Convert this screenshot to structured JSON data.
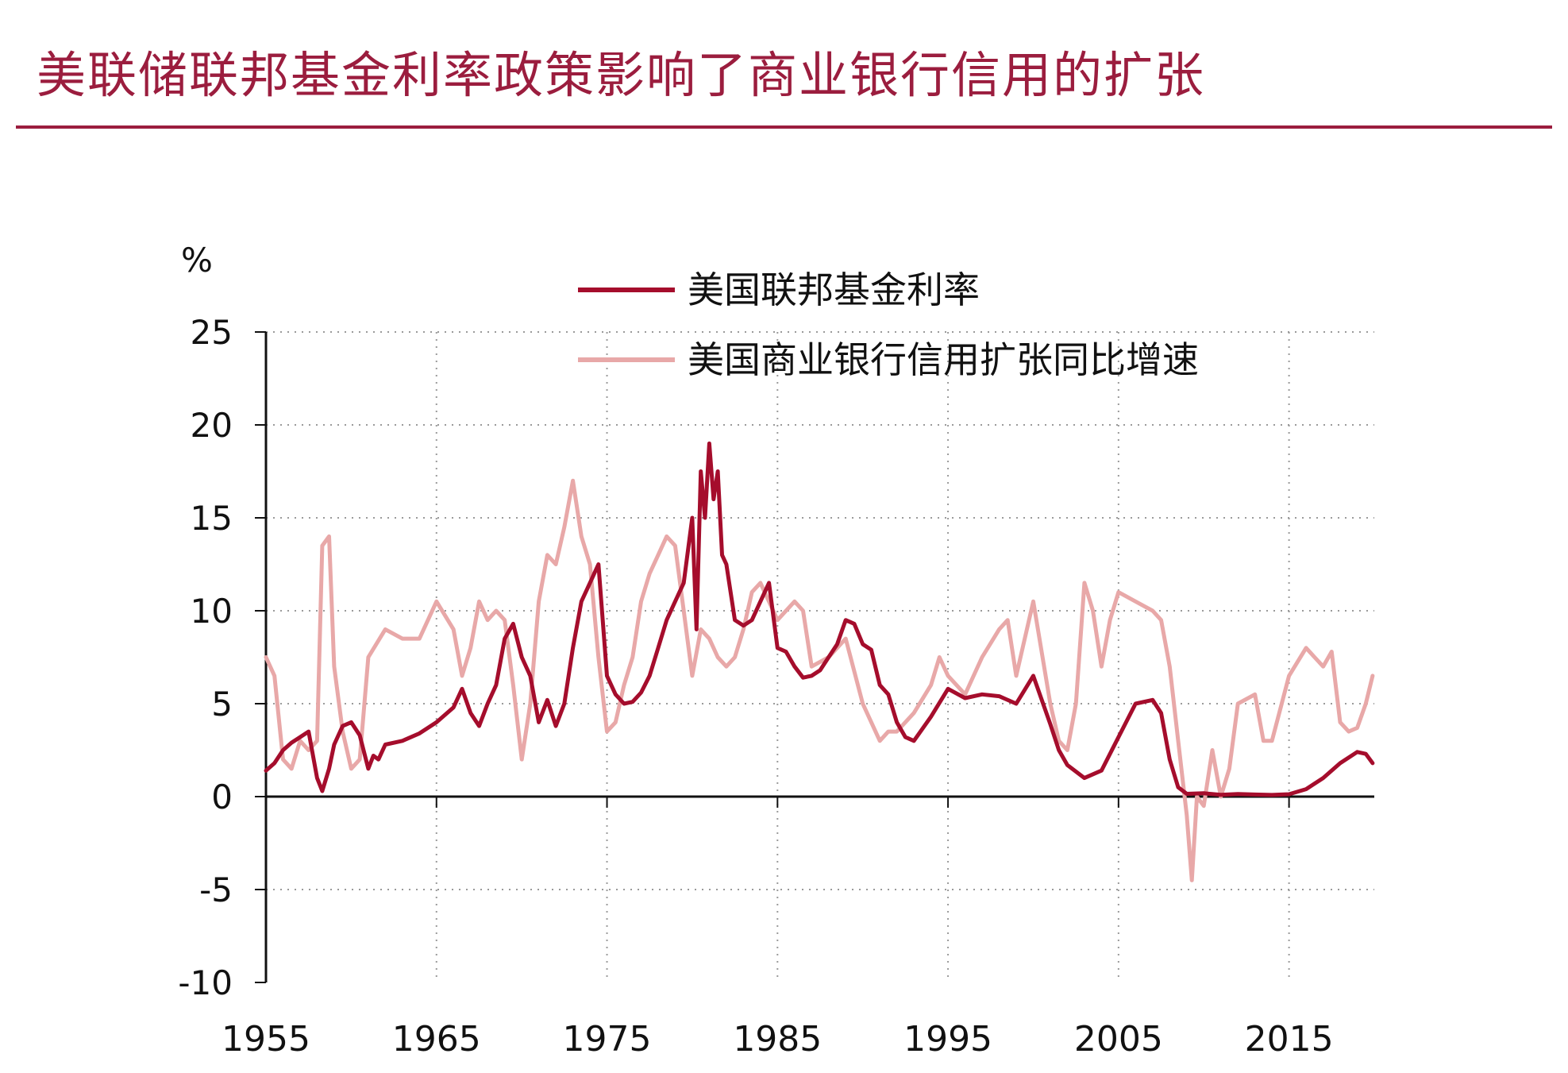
{
  "header": {
    "title": "美联储联邦基金利率政策影响了商业银行信用的扩张"
  },
  "chart_data": {
    "type": "line",
    "title": "美联储联邦基金利率政策影响了商业银行信用的扩张",
    "ylabel": "%",
    "xlabel": "",
    "xlim": [
      1955,
      2020
    ],
    "ylim": [
      -10,
      25
    ],
    "x_ticks": [
      1955,
      1965,
      1975,
      1985,
      1995,
      2005,
      2015
    ],
    "y_ticks": [
      -10,
      -5,
      0,
      5,
      10,
      15,
      20,
      25
    ],
    "grid": true,
    "legend_position": "top-center",
    "series": [
      {
        "name": "美国联邦基金利率",
        "color": "#a50d2c",
        "x": [
          1955,
          1955.5,
          1956,
          1956.5,
          1957,
          1957.5,
          1958,
          1958.3,
          1958.7,
          1959,
          1959.5,
          1960,
          1960.5,
          1961,
          1961.3,
          1961.6,
          1962,
          1963,
          1964,
          1965,
          1966,
          1966.5,
          1967,
          1967.5,
          1968,
          1968.5,
          1969,
          1969.5,
          1970,
          1970.5,
          1971,
          1971.5,
          1972,
          1972.5,
          1973,
          1973.5,
          1974,
          1974.5,
          1975,
          1975.5,
          1976,
          1976.5,
          1977,
          1977.5,
          1978,
          1978.5,
          1979,
          1979.5,
          1980,
          1980.25,
          1980.5,
          1980.75,
          1981,
          1981.25,
          1981.5,
          1981.75,
          1982,
          1982.5,
          1983,
          1983.5,
          1984,
          1984.5,
          1985,
          1985.5,
          1986,
          1986.5,
          1987,
          1987.5,
          1988,
          1988.5,
          1989,
          1989.5,
          1990,
          1990.5,
          1991,
          1991.5,
          1992,
          1992.5,
          1993,
          1994,
          1995,
          1996,
          1997,
          1998,
          1999,
          2000,
          2001,
          2001.5,
          2002,
          2003,
          2004,
          2005,
          2006,
          2007,
          2007.5,
          2008,
          2008.5,
          2009,
          2010,
          2011,
          2012,
          2013,
          2014,
          2015,
          2016,
          2017,
          2018,
          2019,
          2019.5,
          2019.9
        ],
        "values": [
          1.4,
          1.8,
          2.5,
          2.9,
          3.2,
          3.5,
          1.0,
          0.3,
          1.5,
          2.8,
          3.8,
          4.0,
          3.3,
          1.5,
          2.2,
          2.0,
          2.8,
          3.0,
          3.4,
          4.0,
          4.8,
          5.8,
          4.5,
          3.8,
          5.0,
          6.0,
          8.5,
          9.3,
          7.5,
          6.5,
          4.0,
          5.2,
          3.8,
          5.0,
          8.0,
          10.5,
          11.5,
          12.5,
          6.5,
          5.5,
          5.0,
          5.1,
          5.6,
          6.5,
          8.0,
          9.5,
          10.5,
          11.5,
          15.0,
          9.0,
          17.5,
          15.0,
          19.0,
          16.0,
          17.5,
          13.0,
          12.5,
          9.5,
          9.2,
          9.5,
          10.5,
          11.5,
          8.0,
          7.8,
          7.0,
          6.4,
          6.5,
          6.8,
          7.5,
          8.2,
          9.5,
          9.3,
          8.2,
          7.9,
          6.0,
          5.5,
          4.0,
          3.2,
          3.0,
          4.3,
          5.8,
          5.3,
          5.5,
          5.4,
          5.0,
          6.5,
          3.9,
          2.5,
          1.7,
          1.0,
          1.4,
          3.2,
          5.0,
          5.2,
          4.5,
          2.0,
          0.5,
          0.15,
          0.18,
          0.1,
          0.14,
          0.11,
          0.09,
          0.13,
          0.4,
          1.0,
          1.8,
          2.4,
          2.3,
          1.8
        ]
      },
      {
        "name": "美国商业银行信用扩张同比增速",
        "color": "#e8a8a8",
        "x": [
          1955,
          1955.5,
          1956,
          1956.5,
          1957,
          1957.5,
          1958,
          1958.3,
          1958.7,
          1959,
          1959.5,
          1960,
          1960.5,
          1961,
          1962,
          1963,
          1964,
          1965,
          1966,
          1966.5,
          1967,
          1967.5,
          1968,
          1968.5,
          1969,
          1969.5,
          1970,
          1970.5,
          1971,
          1971.5,
          1972,
          1972.5,
          1973,
          1973.5,
          1974,
          1974.5,
          1975,
          1975.5,
          1976,
          1976.5,
          1977,
          1977.5,
          1978,
          1978.5,
          1979,
          1979.5,
          1980,
          1980.5,
          1981,
          1981.5,
          1982,
          1982.5,
          1983,
          1983.5,
          1984,
          1985,
          1986,
          1986.5,
          1987,
          1988,
          1989,
          1990,
          1991,
          1991.5,
          1992,
          1993,
          1994,
          1994.5,
          1995,
          1996,
          1997,
          1998,
          1998.5,
          1999,
          2000,
          2001,
          2001.5,
          2002,
          2002.5,
          2003,
          2003.5,
          2004,
          2004.5,
          2005,
          2006,
          2007,
          2007.5,
          2008,
          2008.5,
          2009,
          2009.3,
          2009.6,
          2010,
          2010.5,
          2011,
          2011.5,
          2012,
          2013,
          2013.5,
          2014,
          2015,
          2016,
          2016.5,
          2017,
          2017.5,
          2018,
          2018.5,
          2019,
          2019.5,
          2019.9
        ],
        "values": [
          7.5,
          6.5,
          2.0,
          1.5,
          3.0,
          2.5,
          3.0,
          13.5,
          14.0,
          7.0,
          3.5,
          1.5,
          2.0,
          7.5,
          9.0,
          8.5,
          8.5,
          10.5,
          9.0,
          6.5,
          8.0,
          10.5,
          9.5,
          10.0,
          9.5,
          6.0,
          2.0,
          5.0,
          10.5,
          13.0,
          12.5,
          14.5,
          17.0,
          14.0,
          12.5,
          7.5,
          3.5,
          4.0,
          6.0,
          7.5,
          10.5,
          12.0,
          13.0,
          14.0,
          13.5,
          10.0,
          6.5,
          9.0,
          8.5,
          7.5,
          7.0,
          7.5,
          9.0,
          11.0,
          11.5,
          9.5,
          10.5,
          10.0,
          7.0,
          7.5,
          8.5,
          5.0,
          3.0,
          3.5,
          3.5,
          4.5,
          6.0,
          7.5,
          6.5,
          5.5,
          7.5,
          9.0,
          9.5,
          6.5,
          10.5,
          5.0,
          3.0,
          2.5,
          5.0,
          11.5,
          10.0,
          7.0,
          9.5,
          11.0,
          10.5,
          10.0,
          9.5,
          7.0,
          3.0,
          -1.0,
          -4.5,
          0.0,
          -0.5,
          2.5,
          0.0,
          1.5,
          5.0,
          5.5,
          3.0,
          3.0,
          6.5,
          8.0,
          7.5,
          7.0,
          7.8,
          4.0,
          3.5,
          3.7,
          5.0,
          6.5
        ]
      }
    ]
  }
}
